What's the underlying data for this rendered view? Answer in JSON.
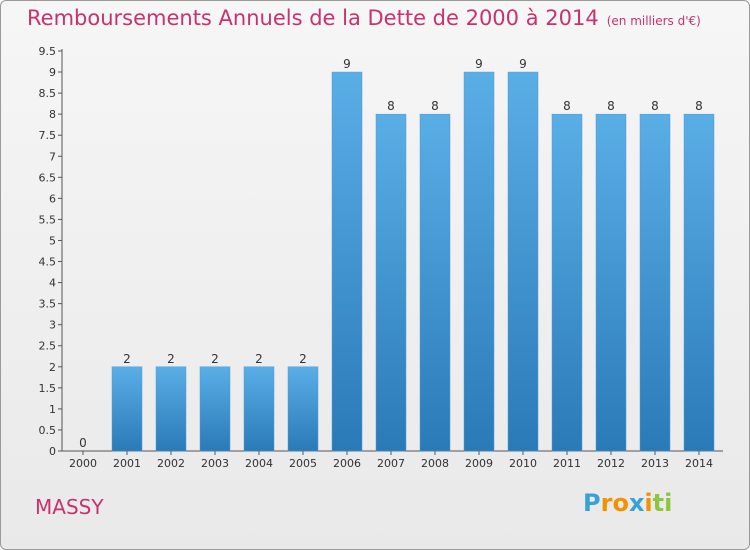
{
  "title": "Remboursements Annuels de la Dette de 2000 à 2014",
  "subtitle": "(en milliers d'€)",
  "city": "MASSY",
  "logo": {
    "text": "Proxiti",
    "letters": [
      {
        "ch": "P",
        "color": "#3aa0d8"
      },
      {
        "ch": "r",
        "color": "#f39200"
      },
      {
        "ch": "o",
        "color": "#f39200"
      },
      {
        "ch": "x",
        "color": "#3aa0d8"
      },
      {
        "ch": "i",
        "color": "#f39200"
      },
      {
        "ch": "t",
        "color": "#8cc63f"
      },
      {
        "ch": "i",
        "color": "#8cc63f"
      }
    ]
  },
  "colors": {
    "title": "#c8326e",
    "bar_top": "#5aaee6",
    "bar_bottom": "#2a7ab8"
  },
  "chart_data": {
    "type": "bar",
    "categories": [
      "2000",
      "2001",
      "2002",
      "2003",
      "2004",
      "2005",
      "2006",
      "2007",
      "2008",
      "2009",
      "2010",
      "2011",
      "2012",
      "2013",
      "2014"
    ],
    "values": [
      0,
      2,
      2,
      2,
      2,
      2,
      9,
      8,
      8,
      9,
      9,
      8,
      8,
      8,
      8
    ],
    "ylim": [
      0,
      9.5
    ],
    "yticks": [
      "0",
      "0.5",
      "1",
      "1.5",
      "2",
      "2.5",
      "3",
      "3.5",
      "4",
      "4.5",
      "5",
      "5.5",
      "6",
      "6.5",
      "7",
      "7.5",
      "8",
      "8.5",
      "9",
      "9.5"
    ],
    "grid": false,
    "xlabel": "",
    "ylabel": ""
  }
}
